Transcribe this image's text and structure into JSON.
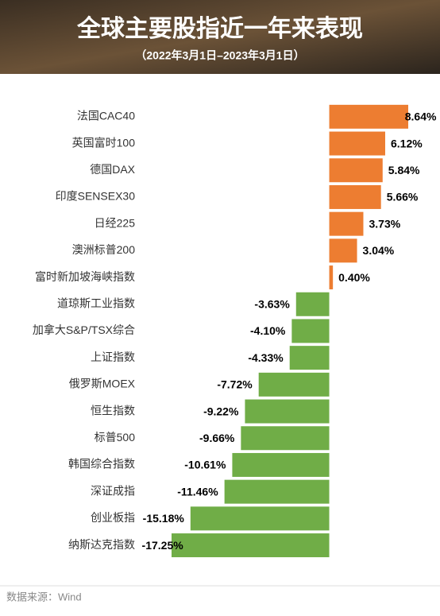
{
  "chart_data": {
    "type": "bar",
    "orientation": "horizontal",
    "title": "全球主要股指近一年来表现",
    "subtitle": "（2022年3月1日–2023年3月1日）",
    "source": "数据来源：Wind",
    "categories": [
      "法国CAC40",
      "英国富时100",
      "德国DAX",
      "印度SENSEX30",
      "日经225",
      "澳洲标普200",
      "富时新加坡海峡指数",
      "道琼斯工业指数",
      "加拿大S&P/TSX综合",
      "上证指数",
      "俄罗斯MOEX",
      "恒生指数",
      "标普500",
      "韩国综合指数",
      "深证成指",
      "创业板指",
      "纳斯达克指数"
    ],
    "values": [
      8.64,
      6.12,
      5.84,
      5.66,
      3.73,
      3.04,
      0.4,
      -3.63,
      -4.1,
      -4.33,
      -7.72,
      -9.22,
      -9.66,
      -10.61,
      -11.46,
      -15.18,
      -17.25
    ],
    "value_labels": [
      "8.64%",
      "6.12%",
      "5.84%",
      "5.66%",
      "3.73%",
      "3.04%",
      "0.40%",
      "-3.63%",
      "-4.10%",
      "-4.33%",
      "-7.72%",
      "-9.22%",
      "-9.66%",
      "-10.61%",
      "-11.46%",
      "-15.18%",
      "-17.25%"
    ],
    "positive_color": "#ed7d31",
    "negative_color": "#70ad47"
  }
}
